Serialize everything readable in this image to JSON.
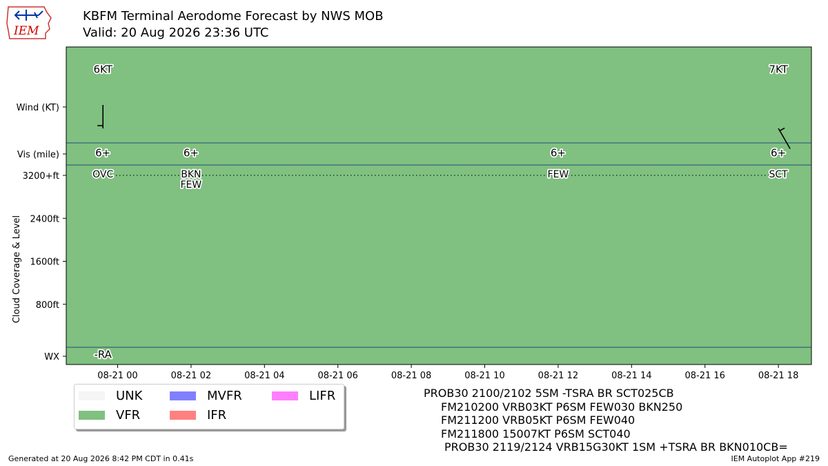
{
  "header": {
    "logo_text": "IEM",
    "title": "KBFM Terminal Aerodome Forecast by NWS MOB",
    "subtitle": "Valid: 20 Aug 2026 23:36 UTC"
  },
  "chart_data": {
    "type": "table",
    "row_labels": {
      "wind": "Wind (KT)",
      "vis": "Vis (mile)",
      "wx": "WX",
      "cloud_axis": "Cloud Coverage & Level"
    },
    "cloud_ticks": [
      "800ft",
      "1600ft",
      "2400ft",
      "3200+ft"
    ],
    "cloud_tick_values": [
      800,
      1600,
      2400,
      3200
    ],
    "cloud_ylim": [
      0,
      3200
    ],
    "x_ticks": [
      "08-21 00",
      "08-21 02",
      "08-21 04",
      "08-21 06",
      "08-21 08",
      "08-21 10",
      "08-21 12",
      "08-21 14",
      "08-21 16",
      "08-21 18"
    ],
    "x_tick_hours": [
      0,
      2,
      4,
      6,
      8,
      10,
      12,
      14,
      16,
      18
    ],
    "x_range_hours": [
      -1.4,
      18.9
    ],
    "background_category": "VFR",
    "background_color": "#80c080",
    "grid": false,
    "periods": [
      {
        "hour": -0.4,
        "wind_label": "6KT",
        "wind_dir_deg": 0,
        "wind_kt": 6,
        "vis": "6+",
        "clouds": [
          "OVC"
        ],
        "wx": "-RA"
      },
      {
        "hour": 2.0,
        "vis": "6+",
        "clouds": [
          "BKN",
          "FEW"
        ]
      },
      {
        "hour": 12.0,
        "vis": "6+",
        "clouds": [
          "FEW"
        ]
      },
      {
        "hour": 18.0,
        "wind_label": "7KT",
        "wind_dir_deg": 150,
        "wind_kt": 7,
        "vis": "6+",
        "clouds": [
          "SCT"
        ]
      }
    ]
  },
  "legend": {
    "placement": "below-left",
    "items": [
      {
        "label": "UNK",
        "color": "#f5f5f5"
      },
      {
        "label": "VFR",
        "color": "#80c080"
      },
      {
        "label": "MVFR",
        "color": "#8080ff"
      },
      {
        "label": "IFR",
        "color": "#ff8080"
      },
      {
        "label": "LIFR",
        "color": "#ff80ff"
      }
    ]
  },
  "taf_lines": [
    "PROB30 2100/2102 5SM -TSRA BR SCT025CB",
    "FM210200 VRB03KT P6SM FEW030 BKN250",
    "FM211200 VRB05KT P6SM FEW040",
    "FM211800 15007KT P6SM SCT040",
    "PROB30 2119/2124 VRB15G30KT 1SM +TSRA BR BKN010CB="
  ],
  "footer": {
    "generated": "Generated at 20 Aug 2026 8:42 PM CDT in 0.41s",
    "app": "IEM Autoplot App #219"
  }
}
